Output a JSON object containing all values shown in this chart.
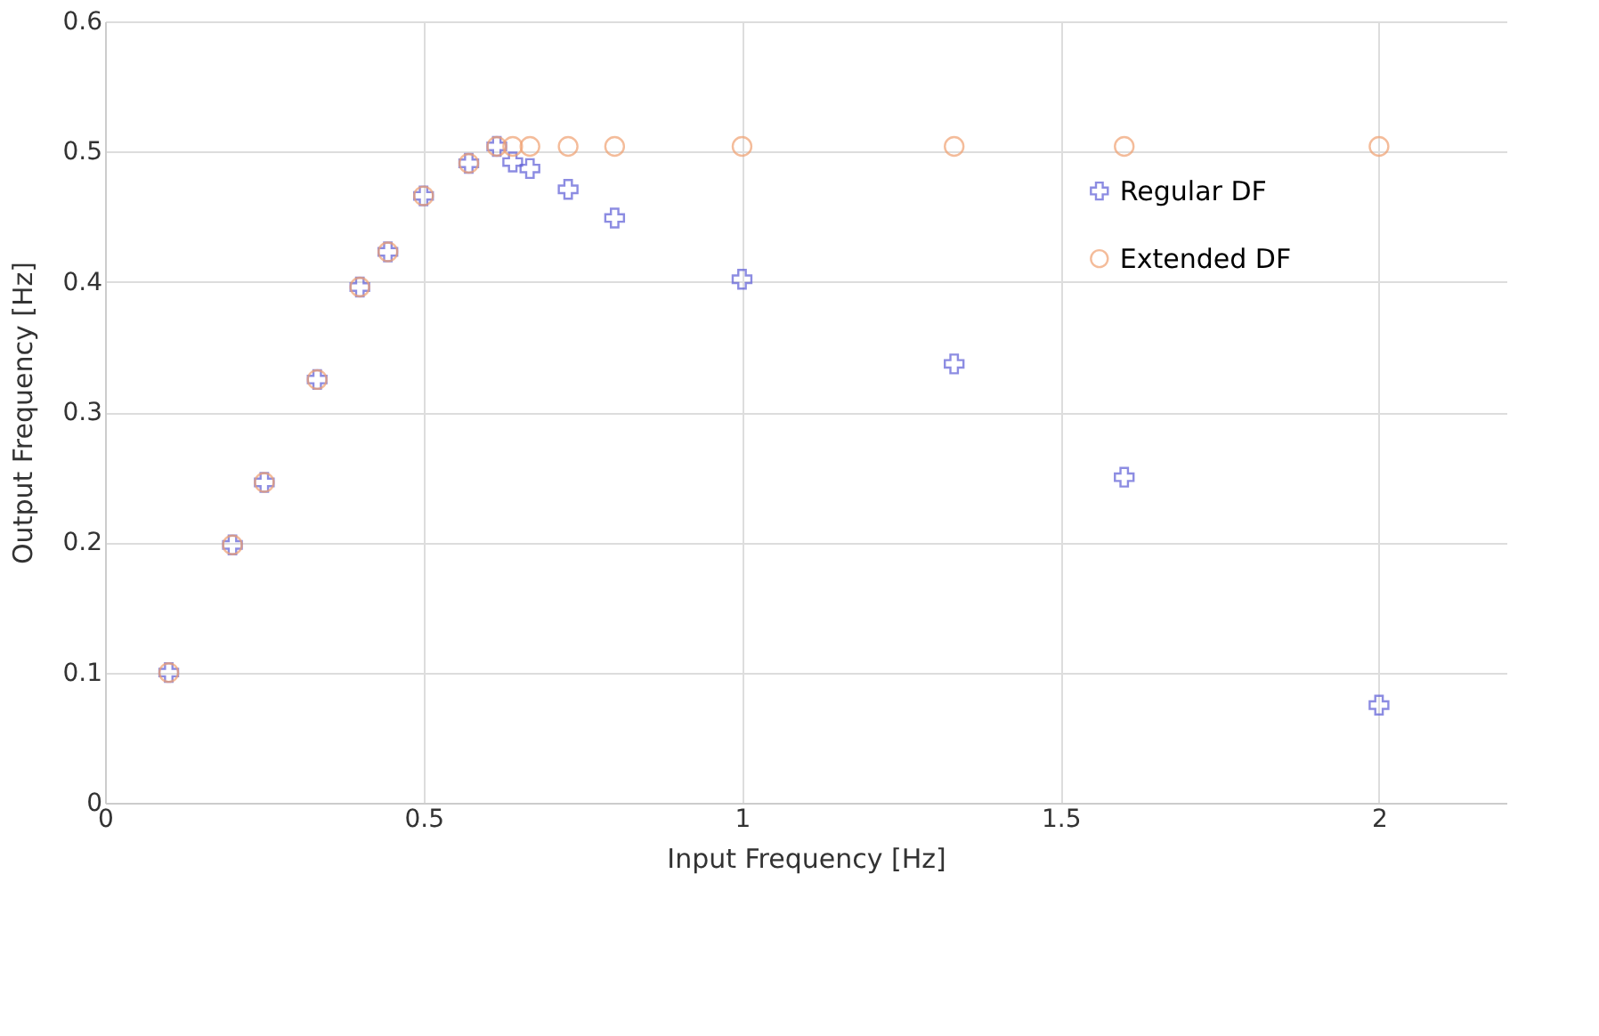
{
  "chart_data": {
    "type": "scatter",
    "xlabel": "Input Frequency [Hz]",
    "ylabel": "Output Frequency [Hz]",
    "x": [
      0.1,
      0.2,
      0.25,
      0.333,
      0.4,
      0.444,
      0.5,
      0.571,
      0.615,
      0.64,
      0.667,
      0.727,
      0.8,
      1,
      1.333,
      1.6,
      2
    ],
    "series": [
      {
        "name": "Regular DF",
        "color": "#5c5cd6",
        "marker": "cross",
        "values": [
          0.1,
          0.198,
          0.246,
          0.325,
          0.396,
          0.423,
          0.466,
          0.491,
          0.504,
          0.492,
          0.487,
          0.471,
          0.449,
          0.402,
          0.337,
          0.25,
          0.075
        ]
      },
      {
        "name": "Extended DF",
        "color": "#f0a070",
        "marker": "circle",
        "values": [
          0.1,
          0.198,
          0.246,
          0.325,
          0.396,
          0.423,
          0.466,
          0.491,
          0.504,
          0.504,
          0.504,
          0.504,
          0.504,
          0.504,
          0.504,
          0.504,
          0.504
        ]
      }
    ],
    "xlim": [
      0,
      2.2
    ],
    "xticks": [
      0,
      0.5,
      1,
      1.5,
      2
    ],
    "ylim": [
      0,
      0.6
    ],
    "yticks": [
      0,
      0.1,
      0.2,
      0.3,
      0.4,
      0.5,
      0.6
    ],
    "grid": true,
    "legend": "right"
  }
}
